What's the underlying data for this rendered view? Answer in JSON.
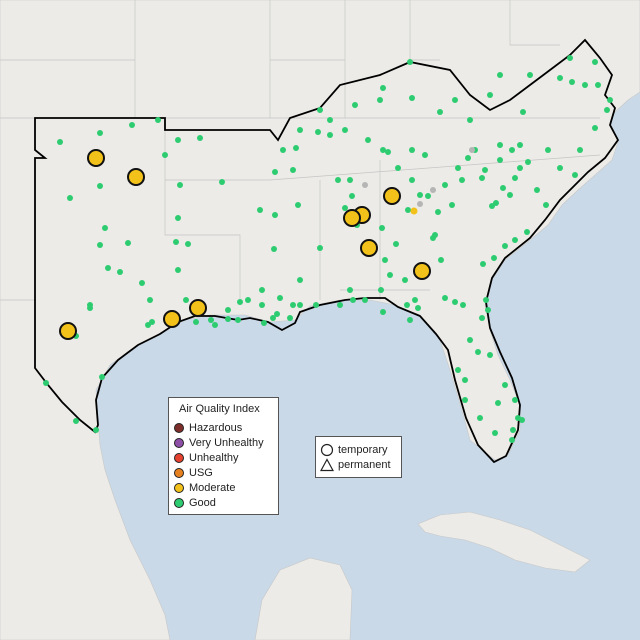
{
  "map": {
    "water_color": "#c9d9e8",
    "land_color": "#ecebe7",
    "region_fill": "#ecebe7",
    "outline_color": "#000000"
  },
  "legend": {
    "title": "Air Quality Index",
    "categories": [
      {
        "label": "Hazardous",
        "color": "#7e2e2a"
      },
      {
        "label": "Very Unhealthy",
        "color": "#8e4fa6"
      },
      {
        "label": "Unhealthy",
        "color": "#e5412f"
      },
      {
        "label": "USG",
        "color": "#e7811f"
      },
      {
        "label": "Moderate",
        "color": "#f2c21b"
      },
      {
        "label": "Good",
        "color": "#2ecc71"
      }
    ]
  },
  "shape_legend": {
    "items": [
      {
        "label": "temporary",
        "icon": "circle-icon"
      },
      {
        "label": "permanent",
        "icon": "triangle-icon"
      }
    ]
  }
}
